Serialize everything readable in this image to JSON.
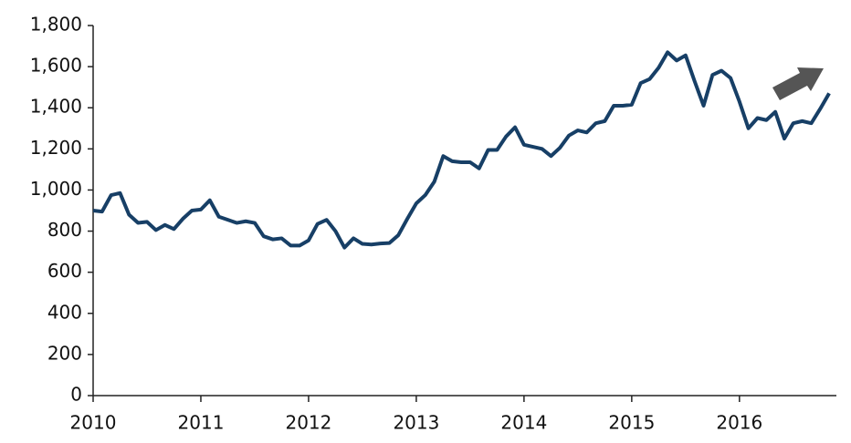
{
  "chart_data": {
    "type": "line",
    "x": [
      2010,
      2010.083,
      2010.167,
      2010.25,
      2010.333,
      2010.417,
      2010.5,
      2010.583,
      2010.667,
      2010.75,
      2010.833,
      2010.917,
      2011,
      2011.083,
      2011.167,
      2011.25,
      2011.333,
      2011.417,
      2011.5,
      2011.583,
      2011.667,
      2011.75,
      2011.833,
      2011.917,
      2012,
      2012.083,
      2012.167,
      2012.25,
      2012.333,
      2012.417,
      2012.5,
      2012.583,
      2012.667,
      2012.75,
      2012.833,
      2012.917,
      2013,
      2013.083,
      2013.167,
      2013.25,
      2013.333,
      2013.417,
      2013.5,
      2013.583,
      2013.667,
      2013.75,
      2013.833,
      2013.917,
      2014,
      2014.083,
      2014.167,
      2014.25,
      2014.333,
      2014.417,
      2014.5,
      2014.583,
      2014.667,
      2014.75,
      2014.833,
      2014.917,
      2015,
      2015.083,
      2015.167,
      2015.25,
      2015.333,
      2015.417,
      2015.5,
      2015.583,
      2015.667,
      2015.75,
      2015.833,
      2015.917,
      2016,
      2016.083,
      2016.167,
      2016.25,
      2016.333,
      2016.417,
      2016.5,
      2016.583,
      2016.667,
      2016.75,
      2016.833
    ],
    "series": [
      {
        "color": "#173f66",
        "values": [
          900,
          895,
          975,
          985,
          880,
          840,
          845,
          805,
          830,
          810,
          860,
          900,
          905,
          950,
          870,
          855,
          840,
          848,
          840,
          775,
          760,
          765,
          730,
          730,
          755,
          835,
          855,
          800,
          720,
          765,
          738,
          735,
          740,
          742,
          780,
          860,
          935,
          975,
          1040,
          1165,
          1140,
          1135,
          1135,
          1105,
          1195,
          1195,
          1260,
          1305,
          1220,
          1210,
          1200,
          1165,
          1205,
          1265,
          1290,
          1280,
          1325,
          1335,
          1410,
          1410,
          1415,
          1520,
          1540,
          1595,
          1670,
          1630,
          1655,
          1530,
          1410,
          1560,
          1580,
          1545,
          1430,
          1300,
          1350,
          1340,
          1380,
          1250,
          1325,
          1335,
          1325,
          1395,
          1470
        ]
      }
    ],
    "xlim": [
      2010,
      2016.9
    ],
    "xticks": [
      2010,
      2011,
      2012,
      2013,
      2014,
      2015,
      2016
    ],
    "ylim": [
      0,
      1800
    ],
    "yticks": [
      0,
      200,
      400,
      600,
      800,
      {
        "value": 1000,
        "label": "1,000"
      },
      {
        "value": 1200,
        "label": "1,200"
      },
      {
        "value": 1400,
        "label": "1,400"
      },
      {
        "value": 1600,
        "label": "1,600"
      },
      {
        "value": 1800,
        "label": "1,800"
      }
    ]
  }
}
